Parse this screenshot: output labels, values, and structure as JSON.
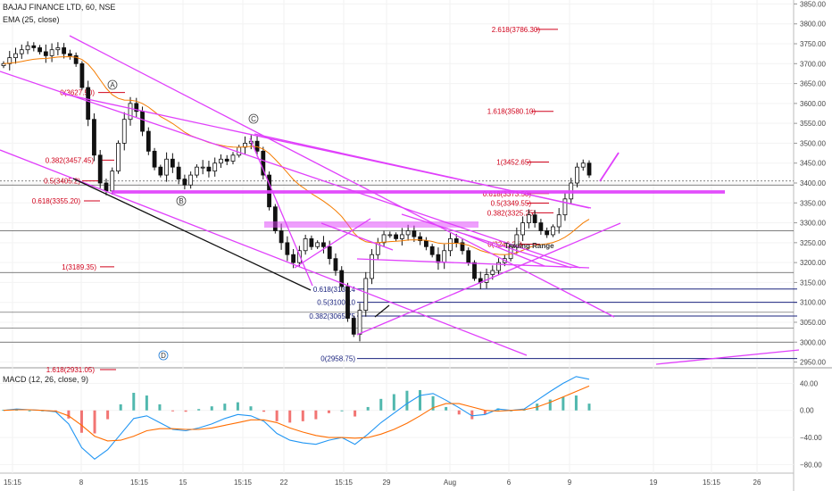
{
  "header": {
    "symbol": "BAJAJ FINANCE LTD, 60, NSE",
    "ema": "EMA (25, close)",
    "macd": "MACD (12, 26, close, 9)"
  },
  "colors": {
    "up": "#26a69a",
    "down": "#ef5350",
    "candle": "#111111",
    "ema": "#f57c00",
    "magenta": "#e040fb",
    "fib_red": "#d0021b",
    "fib_blue": "#1a237e",
    "macd_line": "#2196f3",
    "signal_line": "#ff6d00"
  },
  "chart_data": [
    {
      "type": "candlestick",
      "title": "BAJAJ FINANCE LTD, 60, NSE",
      "ylim": [
        2940,
        3860
      ],
      "y_ticks": [
        2950,
        3000,
        3050,
        3100,
        3150,
        3200,
        3250,
        3300,
        3350,
        3400,
        3450,
        3500,
        3550,
        3600,
        3650,
        3700,
        3750,
        3800,
        3850
      ],
      "x_tick_labels": [
        "15:15",
        "8",
        "15:15",
        "15",
        "15:15",
        "22",
        "15:15",
        "29",
        "Aug",
        "6",
        "9",
        "19",
        "15:15",
        "26"
      ],
      "close_path": [
        3700,
        3715,
        3725,
        3735,
        3745,
        3740,
        3730,
        3720,
        3735,
        3740,
        3725,
        3720,
        3700,
        3640,
        3560,
        3470,
        3400,
        3380,
        3430,
        3500,
        3560,
        3600,
        3580,
        3530,
        3480,
        3440,
        3420,
        3460,
        3440,
        3410,
        3395,
        3420,
        3440,
        3440,
        3430,
        3450,
        3460,
        3455,
        3470,
        3490,
        3500,
        3505,
        3480,
        3420,
        3340,
        3280,
        3250,
        3220,
        3200,
        3230,
        3260,
        3240,
        3250,
        3240,
        3210,
        3180,
        3140,
        3060,
        3020,
        3080,
        3160,
        3220,
        3250,
        3270,
        3270,
        3260,
        3270,
        3280,
        3265,
        3255,
        3240,
        3220,
        3200,
        3230,
        3260,
        3250,
        3230,
        3200,
        3160,
        3150,
        3170,
        3180,
        3200,
        3210,
        3240,
        3270,
        3300,
        3320,
        3300,
        3280,
        3270,
        3290,
        3320,
        3360,
        3400,
        3440,
        3450,
        3420
      ],
      "ema_label": "EMA (25, close)",
      "fib_levels": [
        {
          "label": "2.618(3786.30)",
          "value": 3786.3,
          "color": "red"
        },
        {
          "label": "1.618(3580.10)",
          "value": 3580.1,
          "color": "red"
        },
        {
          "label": "1(3452.65)",
          "value": 3452.65,
          "color": "red"
        },
        {
          "label": "0.618(3373.50)",
          "value": 3373.5,
          "color": "red"
        },
        {
          "label": "0.5(3349.55)",
          "value": 3349.55,
          "color": "red"
        },
        {
          "label": "0.382(3325.25)",
          "value": 3325.25,
          "color": "red"
        },
        {
          "label": "0(3246.25)",
          "value": 3246.25,
          "color": "red"
        },
        {
          "label": "0(3627.50)",
          "value": 3627.5,
          "color": "red"
        },
        {
          "label": "0.382(3457.45)",
          "value": 3457.45,
          "color": "red"
        },
        {
          "label": "0.5(3405.2)",
          "value": 3405.2,
          "color": "red"
        },
        {
          "label": "0.618(3355.20)",
          "value": 3355.2,
          "color": "red"
        },
        {
          "label": "1(3189.35)",
          "value": 3189.35,
          "color": "red"
        },
        {
          "label": "1.618(2931.05)",
          "value": 2931.05,
          "color": "red"
        },
        {
          "label": "0.618(3133.4",
          "value": 3133.4,
          "color": "blue"
        },
        {
          "label": "0.5(3100.10",
          "value": 3100.1,
          "color": "blue"
        },
        {
          "label": "0.382(3065.75",
          "value": 3065.75,
          "color": "blue"
        },
        {
          "label": "0(2958.75)",
          "value": 2958.75,
          "color": "blue"
        }
      ],
      "wave_labels": [
        "A",
        "B",
        "C",
        "D"
      ],
      "annotation": "Trading Range"
    },
    {
      "type": "macd",
      "title": "MACD (12, 26, close, 9)",
      "ylim": [
        -90,
        55
      ],
      "y_ticks": [
        40,
        0,
        -40,
        -80
      ],
      "y_tick_labels": [
        "40.00",
        "0.00",
        "−40.00",
        "−80.00"
      ],
      "macd": [
        0,
        2,
        1,
        0,
        -2,
        -20,
        -55,
        -72,
        -58,
        -35,
        -12,
        -8,
        -18,
        -28,
        -30,
        -26,
        -20,
        -12,
        -6,
        -8,
        -16,
        -34,
        -44,
        -48,
        -50,
        -44,
        -40,
        -50,
        -35,
        -18,
        -4,
        10,
        22,
        25,
        15,
        4,
        -8,
        -6,
        2,
        0,
        2,
        15,
        28,
        40,
        50,
        46
      ],
      "signal": [
        0,
        1,
        1,
        0,
        -1,
        -8,
        -22,
        -38,
        -45,
        -44,
        -38,
        -30,
        -27,
        -27,
        -28,
        -28,
        -26,
        -22,
        -18,
        -14,
        -14,
        -18,
        -26,
        -32,
        -37,
        -40,
        -40,
        -41,
        -40,
        -35,
        -28,
        -19,
        -8,
        4,
        10,
        10,
        5,
        0,
        -1,
        0,
        1,
        5,
        12,
        20,
        28,
        36
      ],
      "hist": [
        1,
        1,
        0,
        0,
        -1,
        -12,
        -33,
        -34,
        -13,
        9,
        26,
        22,
        9,
        -1,
        -2,
        2,
        6,
        10,
        12,
        6,
        -2,
        -16,
        -18,
        -16,
        -13,
        -4,
        0,
        -9,
        5,
        17,
        24,
        29,
        30,
        21,
        5,
        -6,
        -13,
        -6,
        3,
        0,
        1,
        10,
        16,
        20,
        22,
        10
      ]
    }
  ]
}
